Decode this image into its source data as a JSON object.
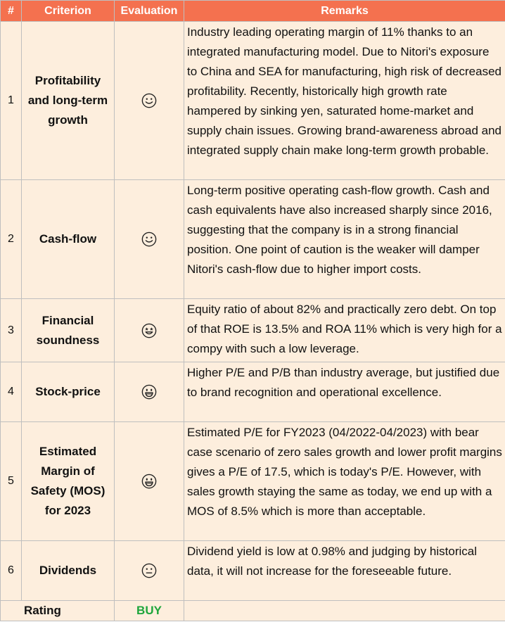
{
  "header": {
    "num": "#",
    "criterion": "Criterion",
    "evaluation": "Evaluation",
    "remarks": "Remarks"
  },
  "rows": [
    {
      "num": "1",
      "criterion": "Profitability and long-term growth",
      "evaluation_icon": "slightly-smiling-face-icon",
      "remarks": "Industry leading operating margin of 11% thanks to an integrated manufacturing model. Due to Nitori's exposure to China and SEA for manufacturing, high risk of decreased profitability. Recently, historically high growth rate hampered by sinking yen, saturated home-market and supply chain issues. Growing brand-awareness abroad and integrated supply chain make long-term growth probable."
    },
    {
      "num": "2",
      "criterion": "Cash-flow",
      "evaluation_icon": "slightly-smiling-face-icon",
      "remarks": "Long-term positive operating cash-flow growth. Cash and cash equivalents have also increased sharply since 2016, suggesting that the company is in a strong financial position. One point of caution is the weaker will damper Nitori's cash-flow due to higher import costs."
    },
    {
      "num": "3",
      "criterion": "Financial soundness",
      "evaluation_icon": "star-struck-face-icon",
      "remarks": "Equity ratio of about 82% and practically zero debt. On top of that ROE is 13.5% and ROA 11% which is very high for a compy with such a low leverage."
    },
    {
      "num": "4",
      "criterion": "Stock-price",
      "evaluation_icon": "grinning-face-icon",
      "remarks": "Higher P/E and P/B than industry average, but justified due to brand recognition and operational excellence."
    },
    {
      "num": "5",
      "criterion": "Estimated Margin of Safety (MOS) for 2023",
      "evaluation_icon": "grinning-face-icon",
      "remarks": "Estimated P/E for FY2023 (04/2022-04/2023)  with bear case scenario of zero sales growth and lower profit margins gives a P/E of 17.5, which is today's P/E. However, with sales growth staying the same as today, we end up with a MOS of 8.5% which is more than acceptable."
    },
    {
      "num": "6",
      "criterion": "Dividends",
      "evaluation_icon": "neutral-face-icon",
      "remarks": "Dividend yield is low at 0.98% and judging by historical data, it will not increase for the foreseeable future."
    }
  ],
  "rating": {
    "label": "Rating",
    "value": "BUY",
    "value_color": "#1ea63c"
  },
  "colors": {
    "header_bg": "#f4714f",
    "cell_bg": "#fdeedd",
    "border": "#bfbfbf"
  }
}
